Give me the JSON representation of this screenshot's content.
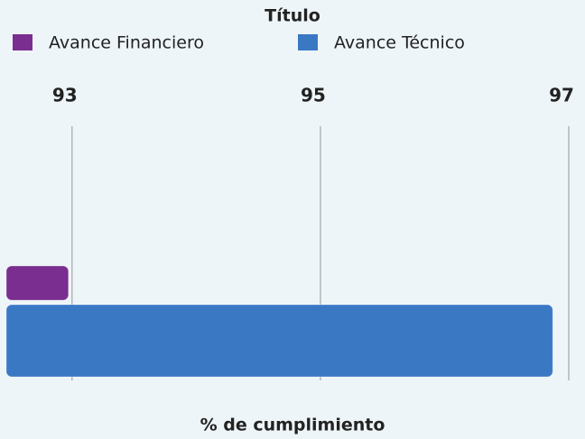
{
  "chart_data": {
    "type": "barh",
    "title": "Título",
    "xlabel": "% de cumplimiento",
    "categories": [
      null
    ],
    "series": [
      {
        "name": "Avance Financiero",
        "color": "#7a2e8f",
        "values": [
          93
        ]
      },
      {
        "name": "Avance Técnico",
        "color": "#3a78c4",
        "values": [
          96.9
        ]
      }
    ],
    "xlim": [
      92.5,
      97
    ],
    "xticks": [
      93,
      95,
      97
    ],
    "grid": true,
    "legend": "top"
  }
}
